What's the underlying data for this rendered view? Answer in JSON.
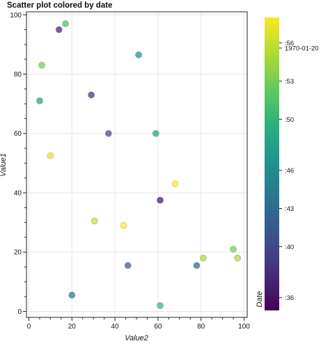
{
  "chart_data": {
    "type": "scatter",
    "title": "Scatter plot colored by date",
    "xlabel": "Value2",
    "ylabel": "Value1",
    "xlim": [
      0,
      100
    ],
    "ylim": [
      -2,
      101
    ],
    "x_ticks": [
      0,
      20,
      40,
      60,
      80,
      100
    ],
    "x_tick_labels": [
      "0",
      "20",
      "40",
      "60",
      "80",
      "100"
    ],
    "y_ticks": [
      0,
      20,
      40,
      60,
      80,
      100
    ],
    "y_tick_labels": [
      "0",
      "20",
      "40",
      "60",
      "80",
      "100"
    ],
    "grid": true,
    "colorbar": {
      "label": "Date",
      "colormap": "viridis",
      "range": [
        "1970-01-20 00:35",
        "1970-01-20 00:58"
      ],
      "ticks": [
        {
          "value": "1970-01-20 00:36",
          "label": ":36"
        },
        {
          "value": "1970-01-20 00:40",
          "label": ":40"
        },
        {
          "value": "1970-01-20 00:43",
          "label": ":43"
        },
        {
          "value": "1970-01-20 00:46",
          "label": ":46"
        },
        {
          "value": "1970-01-20 00:50",
          "label": ":50"
        },
        {
          "value": "1970-01-20 00:53",
          "label": ":53"
        },
        {
          "value": "1970-01-20 00:56",
          "label": ":56"
        },
        {
          "value": "1970-01-20",
          "label": "1970-01-20"
        }
      ]
    },
    "points": [
      {
        "x": 14,
        "y": 95,
        "date": "1970-01-20 00:37"
      },
      {
        "x": 17,
        "y": 97,
        "date": "1970-01-20 00:51"
      },
      {
        "x": 6,
        "y": 83,
        "date": "1970-01-20 00:53"
      },
      {
        "x": 51,
        "y": 86.5,
        "date": "1970-01-20 00:46"
      },
      {
        "x": 29,
        "y": 73,
        "date": "1970-01-20 00:38"
      },
      {
        "x": 5,
        "y": 71,
        "date": "1970-01-20 00:48"
      },
      {
        "x": 37,
        "y": 60,
        "date": "1970-01-20 00:40"
      },
      {
        "x": 59,
        "y": 60,
        "date": "1970-01-20 00:48"
      },
      {
        "x": 10,
        "y": 52.5,
        "date": "1970-01-20 00:57"
      },
      {
        "x": 68,
        "y": 43,
        "date": "1970-01-20 00:58"
      },
      {
        "x": 61,
        "y": 37.5,
        "date": "1970-01-20 00:36"
      },
      {
        "x": 30.5,
        "y": 30.5,
        "date": "1970-01-20 00:56"
      },
      {
        "x": 44,
        "y": 29,
        "date": "1970-01-20 00:59"
      },
      {
        "x": 95,
        "y": 21,
        "date": "1970-01-20 00:53"
      },
      {
        "x": 81,
        "y": 18,
        "date": "1970-01-20 00:55"
      },
      {
        "x": 97,
        "y": 18,
        "date": "1970-01-20 00:55"
      },
      {
        "x": 46,
        "y": 15.5,
        "date": "1970-01-20 00:41"
      },
      {
        "x": 78,
        "y": 15.5,
        "date": "1970-01-20 00:42"
      },
      {
        "x": 20,
        "y": 5.5,
        "date": "1970-01-20 00:44"
      },
      {
        "x": 61,
        "y": 2,
        "date": "1970-01-20 00:50"
      }
    ]
  }
}
